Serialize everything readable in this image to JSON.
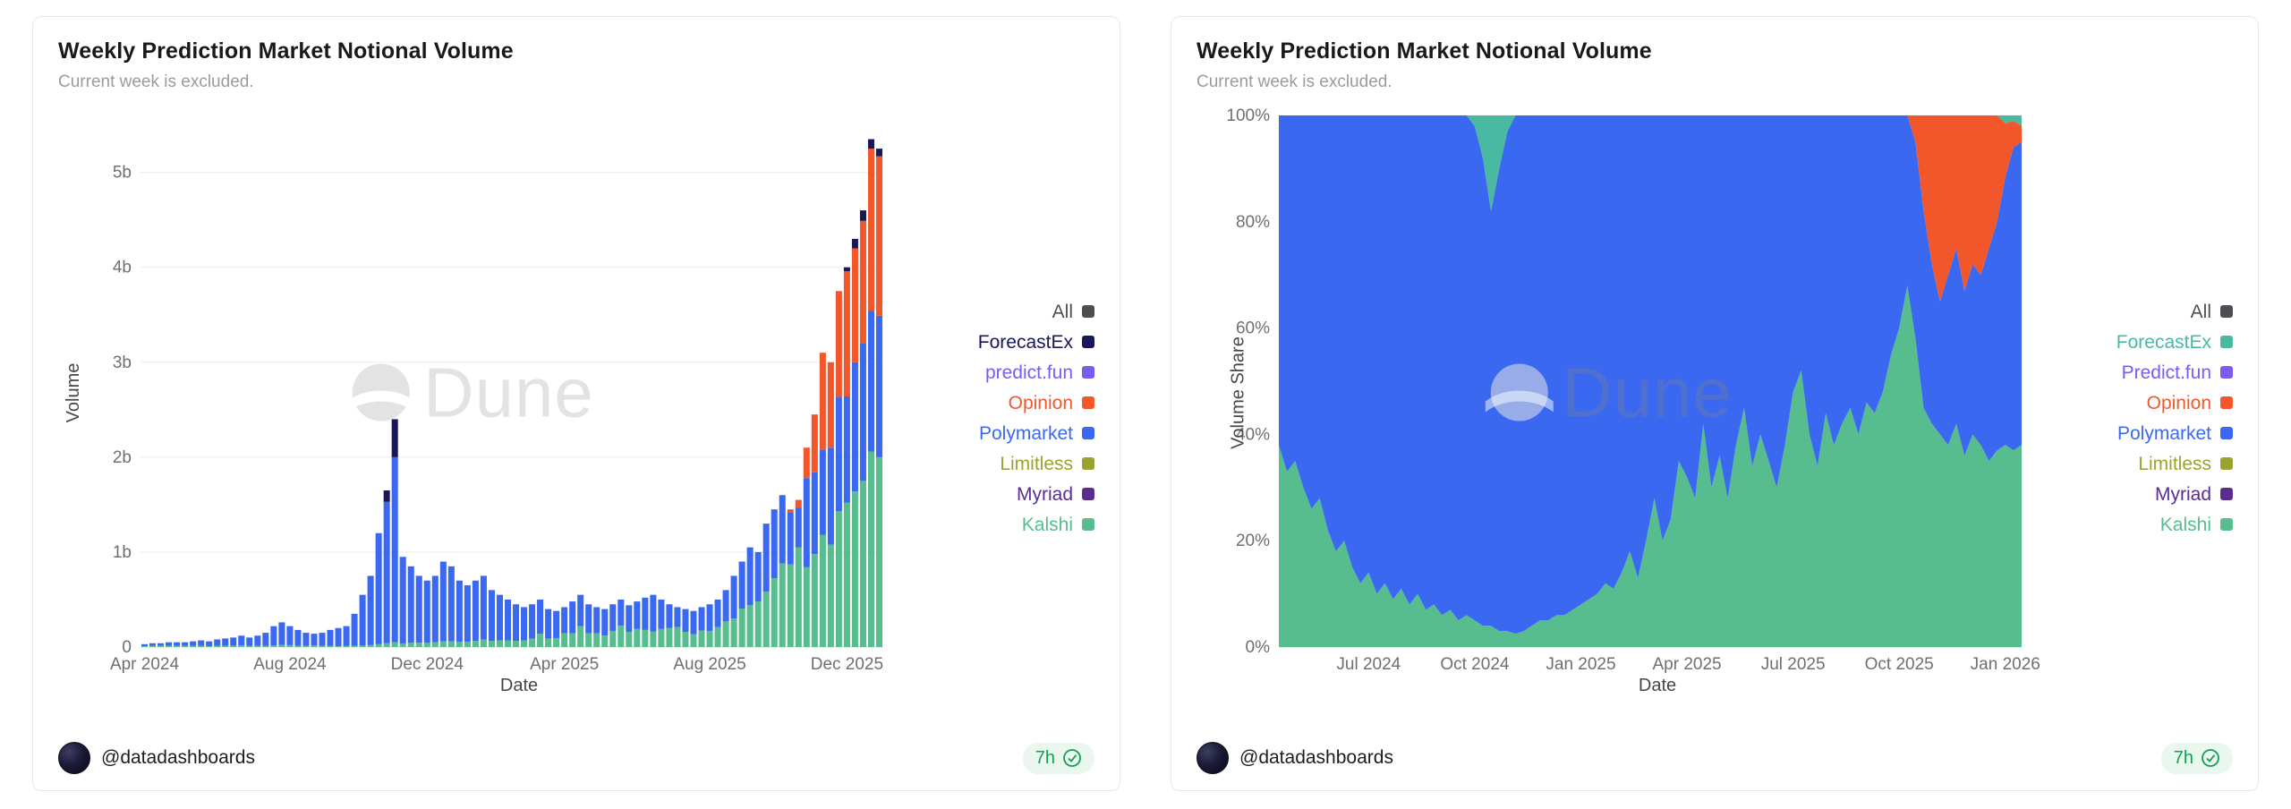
{
  "watermark": {
    "text": "Dune"
  },
  "cards": [
    {
      "footer": {
        "handle": "@datadashboards",
        "time": "7h"
      }
    },
    {
      "footer": {
        "handle": "@datadashboards",
        "time": "7h"
      }
    }
  ],
  "chart_data": [
    {
      "type": "bar",
      "stacked": true,
      "title": "Weekly Prediction Market Notional Volume",
      "subtitle": "Current week is excluded.",
      "xlabel": "Date",
      "ylabel": "Volume",
      "values_unit": "USD billions per week",
      "grid": true,
      "legend_position": "right",
      "ylim": [
        0,
        5.6
      ],
      "yticks": [
        {
          "v": 0,
          "label": "0"
        },
        {
          "v": 1,
          "label": "1b"
        },
        {
          "v": 2,
          "label": "2b"
        },
        {
          "v": 3,
          "label": "3b"
        },
        {
          "v": 4,
          "label": "4b"
        },
        {
          "v": 5,
          "label": "5b"
        }
      ],
      "xticks": [
        {
          "index": 0,
          "label": "Apr 2024"
        },
        {
          "index": 18,
          "label": "Aug 2024"
        },
        {
          "index": 35,
          "label": "Dec 2024"
        },
        {
          "index": 52,
          "label": "Apr 2025"
        },
        {
          "index": 70,
          "label": "Aug 2025"
        },
        {
          "index": 87,
          "label": "Dec 2025"
        }
      ],
      "legend": [
        {
          "label": "All",
          "color": "#4d4d52"
        },
        {
          "label": "ForecastEx",
          "color": "#17175a"
        },
        {
          "label": "predict.fun",
          "color": "#7c5bf1"
        },
        {
          "label": "Opinion",
          "color": "#f2572c"
        },
        {
          "label": "Polymarket",
          "color": "#3b68f0"
        },
        {
          "label": "Limitless",
          "color": "#9aa32f"
        },
        {
          "label": "Myriad",
          "color": "#5c2d91"
        },
        {
          "label": "Kalshi",
          "color": "#57bd8e"
        }
      ],
      "stack_order": [
        "Kalshi",
        "Polymarket",
        "Opinion",
        "ForecastEx"
      ],
      "series": [
        {
          "name": "Kalshi",
          "color": "#57bd8e",
          "values": [
            0.01,
            0.012,
            0.012,
            0.014,
            0.013,
            0.012,
            0.012,
            0.012,
            0.01,
            0.012,
            0.013,
            0.015,
            0.018,
            0.014,
            0.012,
            0.014,
            0.018,
            0.022,
            0.02,
            0.012,
            0.012,
            0.016,
            0.012,
            0.011,
            0.01,
            0.011,
            0.012,
            0.015,
            0.02,
            0.03,
            0.04,
            0.05,
            0.035,
            0.045,
            0.045,
            0.045,
            0.05,
            0.06,
            0.06,
            0.055,
            0.055,
            0.065,
            0.08,
            0.065,
            0.07,
            0.07,
            0.065,
            0.07,
            0.09,
            0.14,
            0.09,
            0.095,
            0.145,
            0.145,
            0.22,
            0.145,
            0.145,
            0.12,
            0.17,
            0.225,
            0.16,
            0.19,
            0.18,
            0.165,
            0.19,
            0.2,
            0.21,
            0.16,
            0.135,
            0.175,
            0.17,
            0.21,
            0.27,
            0.3,
            0.405,
            0.44,
            0.48,
            0.585,
            0.725,
            0.88,
            0.87,
            1.05,
            0.84,
            0.98,
            1.18,
            1.08,
            1.43,
            1.52,
            1.64,
            1.75,
            2.06,
            2.0
          ]
        },
        {
          "name": "Polymarket",
          "color": "#3b68f0",
          "values": [
            0.02,
            0.028,
            0.028,
            0.036,
            0.037,
            0.038,
            0.048,
            0.058,
            0.05,
            0.068,
            0.077,
            0.085,
            0.102,
            0.086,
            0.108,
            0.136,
            0.202,
            0.238,
            0.2,
            0.168,
            0.138,
            0.124,
            0.138,
            0.169,
            0.19,
            0.209,
            0.338,
            0.535,
            0.73,
            1.17,
            1.49,
            1.95,
            0.915,
            0.805,
            0.705,
            0.655,
            0.7,
            0.84,
            0.79,
            0.645,
            0.595,
            0.635,
            0.67,
            0.535,
            0.48,
            0.43,
            0.385,
            0.35,
            0.36,
            0.36,
            0.31,
            0.285,
            0.275,
            0.335,
            0.33,
            0.305,
            0.275,
            0.28,
            0.28,
            0.275,
            0.28,
            0.29,
            0.34,
            0.385,
            0.31,
            0.25,
            0.21,
            0.24,
            0.245,
            0.245,
            0.28,
            0.29,
            0.33,
            0.45,
            0.495,
            0.61,
            0.52,
            0.715,
            0.725,
            0.72,
            0.55,
            0.42,
            0.94,
            0.86,
            0.9,
            1.02,
            1.2,
            1.12,
            1.36,
            1.45,
            1.48,
            1.49
          ]
        },
        {
          "name": "Opinion",
          "color": "#f2572c",
          "values": [
            0,
            0,
            0,
            0,
            0,
            0,
            0,
            0,
            0,
            0,
            0,
            0,
            0,
            0,
            0,
            0,
            0,
            0,
            0,
            0,
            0,
            0,
            0,
            0,
            0,
            0,
            0,
            0,
            0,
            0,
            0,
            0,
            0,
            0,
            0,
            0,
            0,
            0,
            0,
            0,
            0,
            0,
            0,
            0,
            0,
            0,
            0,
            0,
            0,
            0,
            0,
            0,
            0,
            0,
            0,
            0,
            0,
            0,
            0,
            0,
            0,
            0,
            0,
            0,
            0,
            0,
            0,
            0,
            0,
            0,
            0,
            0,
            0,
            0,
            0,
            0,
            0,
            0,
            0,
            0,
            0.03,
            0.08,
            0.32,
            0.61,
            1.02,
            0.9,
            1.12,
            1.32,
            1.2,
            1.29,
            1.71,
            1.68
          ]
        },
        {
          "name": "ForecastEx",
          "color": "#17175a",
          "values": [
            0,
            0,
            0,
            0,
            0,
            0,
            0,
            0,
            0,
            0,
            0,
            0,
            0,
            0,
            0,
            0,
            0,
            0,
            0,
            0,
            0,
            0,
            0,
            0,
            0,
            0,
            0,
            0,
            0,
            0,
            0.12,
            0.4,
            0,
            0,
            0,
            0,
            0,
            0,
            0,
            0,
            0,
            0,
            0,
            0,
            0,
            0,
            0,
            0,
            0,
            0,
            0,
            0,
            0,
            0,
            0,
            0,
            0,
            0,
            0,
            0,
            0,
            0,
            0,
            0,
            0,
            0,
            0,
            0,
            0,
            0,
            0,
            0,
            0,
            0,
            0,
            0,
            0,
            0,
            0,
            0,
            0,
            0,
            0,
            0,
            0,
            0,
            0,
            0.04,
            0.1,
            0.11,
            0.1,
            0.08
          ]
        }
      ]
    },
    {
      "type": "area",
      "stacked": true,
      "stacked_percent": true,
      "title": "Weekly Prediction Market Notional Volume",
      "subtitle": "Current week is excluded.",
      "xlabel": "Date",
      "ylabel": "Volume Share",
      "values_unit": "percent of weekly volume",
      "grid": true,
      "legend_position": "right",
      "ylim": [
        0,
        100
      ],
      "yticks": [
        {
          "v": 0,
          "label": "0%"
        },
        {
          "v": 20,
          "label": "20%"
        },
        {
          "v": 40,
          "label": "40%"
        },
        {
          "v": 60,
          "label": "60%"
        },
        {
          "v": 80,
          "label": "80%"
        },
        {
          "v": 100,
          "label": "100%"
        }
      ],
      "xticks": [
        {
          "index": 11,
          "label": "Jul 2024"
        },
        {
          "index": 24,
          "label": "Oct 2024"
        },
        {
          "index": 37,
          "label": "Jan 2025"
        },
        {
          "index": 50,
          "label": "Apr 2025"
        },
        {
          "index": 63,
          "label": "Jul 2025"
        },
        {
          "index": 76,
          "label": "Oct 2025"
        },
        {
          "index": 89,
          "label": "Jan 2026"
        }
      ],
      "legend": [
        {
          "label": "All",
          "color": "#4d4d52"
        },
        {
          "label": "ForecastEx",
          "color": "#4ab9a2"
        },
        {
          "label": "Predict.fun",
          "color": "#7c5bf1"
        },
        {
          "label": "Opinion",
          "color": "#f2572c"
        },
        {
          "label": "Polymarket",
          "color": "#3b68f0"
        },
        {
          "label": "Limitless",
          "color": "#9aa32f"
        },
        {
          "label": "Myriad",
          "color": "#5c2d91"
        },
        {
          "label": "Kalshi",
          "color": "#57bd8e"
        }
      ],
      "stack_order": [
        "Kalshi",
        "Polymarket",
        "Opinion",
        "ForecastEx"
      ],
      "series": [
        {
          "name": "Kalshi",
          "color": "#57bd8e",
          "values": [
            38,
            33,
            35,
            30,
            26,
            28,
            22,
            18,
            20,
            15,
            12,
            14,
            10,
            12,
            9,
            11,
            8,
            10,
            7,
            8,
            6,
            7,
            5,
            6,
            5,
            4,
            4,
            3,
            3,
            2.5,
            3,
            4,
            5,
            5,
            6,
            6,
            7,
            8,
            9,
            10,
            12,
            11,
            14,
            18,
            13,
            20,
            28,
            20,
            24,
            35,
            32,
            28,
            42,
            30,
            36,
            28,
            38,
            45,
            34,
            40,
            35,
            30,
            38,
            48,
            52,
            40,
            34,
            44,
            38,
            42,
            45,
            40,
            46,
            44,
            48,
            55,
            60,
            68,
            58,
            45,
            42,
            40,
            38,
            42,
            36,
            40,
            38,
            35,
            37,
            38,
            37,
            38
          ]
        },
        {
          "name": "Polymarket",
          "color": "#3b68f0",
          "remainder": true,
          "note": "100 minus the sum of the other plotted series"
        },
        {
          "name": "Opinion",
          "color": "#f2572c",
          "values": [
            0,
            0,
            0,
            0,
            0,
            0,
            0,
            0,
            0,
            0,
            0,
            0,
            0,
            0,
            0,
            0,
            0,
            0,
            0,
            0,
            0,
            0,
            0,
            0,
            0,
            0,
            0,
            0,
            0,
            0,
            0,
            0,
            0,
            0,
            0,
            0,
            0,
            0,
            0,
            0,
            0,
            0,
            0,
            0,
            0,
            0,
            0,
            0,
            0,
            0,
            0,
            0,
            0,
            0,
            0,
            0,
            0,
            0,
            0,
            0,
            0,
            0,
            0,
            0,
            0,
            0,
            0,
            0,
            0,
            0,
            0,
            0,
            0,
            0,
            0,
            0,
            0,
            0,
            5,
            18,
            28,
            35,
            30,
            25,
            33,
            28,
            30,
            25,
            20,
            10,
            5,
            3
          ]
        },
        {
          "name": "ForecastEx",
          "color": "#4ab9a2",
          "values": [
            0,
            0,
            0,
            0,
            0,
            0,
            0,
            0,
            0,
            0,
            0,
            0,
            0,
            0,
            0,
            0,
            0,
            0,
            0,
            0,
            0,
            0,
            0,
            0,
            2,
            8,
            18,
            10,
            3,
            0,
            0,
            0,
            0,
            0,
            0,
            0,
            0,
            0,
            0,
            0,
            0,
            0,
            0,
            0,
            0,
            0,
            0,
            0,
            0,
            0,
            0,
            0,
            0,
            0,
            0,
            0,
            0,
            0,
            0,
            0,
            0,
            0,
            0,
            0,
            0,
            0,
            0,
            0,
            0,
            0,
            0,
            0,
            0,
            0,
            0,
            0,
            0,
            0,
            0,
            0,
            0,
            0,
            0,
            0,
            0,
            0,
            0,
            0,
            0,
            1.5,
            1,
            2
          ]
        }
      ]
    }
  ]
}
